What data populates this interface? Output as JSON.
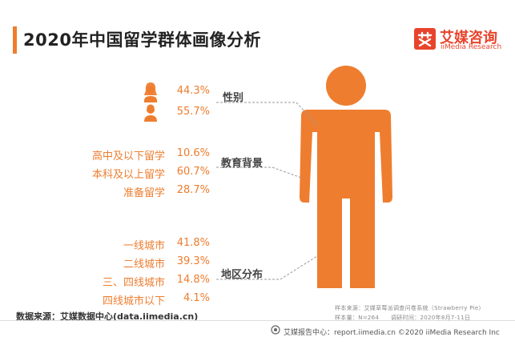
{
  "header": {
    "title": "2020年中国留学群体画像分析"
  },
  "brand": {
    "name_cn": "艾媒咨询",
    "name_en": "iiMedia Research"
  },
  "colors": {
    "accent": "#ee7d2f",
    "brand_red": "#e8442c",
    "text": "#333333"
  },
  "chart_data": {
    "type": "table",
    "sections": [
      {
        "label": "性别",
        "items": [
          {
            "category": "female-icon",
            "value": 44.3,
            "text": "44.3%"
          },
          {
            "category": "male-icon",
            "value": 55.7,
            "text": "55.7%"
          }
        ]
      },
      {
        "label": "教育背景",
        "items": [
          {
            "category": "高中及以下留学",
            "value": 10.6,
            "text": "10.6%"
          },
          {
            "category": "本科及以上留学",
            "value": 60.7,
            "text": "60.7%"
          },
          {
            "category": "准备留学",
            "value": 28.7,
            "text": "28.7%"
          }
        ]
      },
      {
        "label": "地区分布",
        "items": [
          {
            "category": "一线城市",
            "value": 41.8,
            "text": "41.8%"
          },
          {
            "category": "二线城市",
            "value": 39.3,
            "text": "39.3%"
          },
          {
            "category": "三、四线城市",
            "value": 14.8,
            "text": "14.8%"
          },
          {
            "category": "四线城市以下",
            "value": 4.1,
            "text": "4.1%"
          }
        ]
      }
    ]
  },
  "footer": {
    "source": "数据来源：艾媒数据中心(data.iimedia.cn)",
    "sample_source": "样本来源：艾媒草莓派调查问卷系统（Strawberry Pie）",
    "sample_size": "样本量：N=264",
    "survey_time": "调研时间：2020年8月7-11日",
    "report": "艾媒报告中心：report.iimedia.cn  ©2020  iiMedia Research  Inc"
  }
}
